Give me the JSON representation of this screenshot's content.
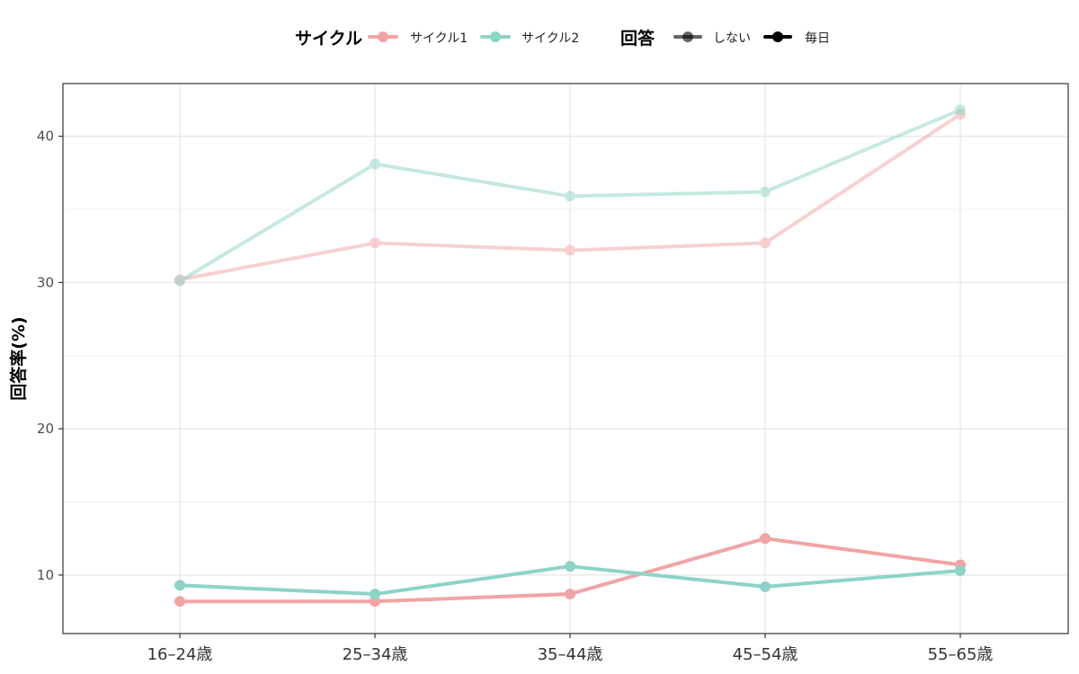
{
  "chart_data": {
    "type": "line",
    "ylabel": "回答率(%)",
    "xlabel": "",
    "categories": [
      "16–24歳",
      "25–34歳",
      "35–44歳",
      "45–54歳",
      "55–65歳"
    ],
    "ylim": [
      6.0,
      43.6
    ],
    "yticks": [
      10,
      20,
      30,
      40
    ],
    "grid": true,
    "legend_position": "top",
    "legend": {
      "color": {
        "title": "サイクル",
        "entries": [
          {
            "label": "サイクル1",
            "color": "#F2A3A3"
          },
          {
            "label": "サイクル2",
            "color": "#8DD3C7"
          }
        ]
      },
      "alpha": {
        "title": "回答",
        "entries": [
          {
            "label": "しない",
            "opacity": 0.5
          },
          {
            "label": "毎日",
            "opacity": 1.0
          }
        ]
      }
    },
    "series": [
      {
        "cycle": "サイクル1",
        "response": "しない",
        "color": "#F2A3A3",
        "opacity": 0.5,
        "values": [
          30.2,
          32.7,
          32.2,
          32.7,
          41.5
        ]
      },
      {
        "cycle": "サイクル2",
        "response": "しない",
        "color": "#8DD3C7",
        "opacity": 0.5,
        "values": [
          30.1,
          38.1,
          35.9,
          36.2,
          41.8
        ]
      },
      {
        "cycle": "サイクル1",
        "response": "毎日",
        "color": "#F2A3A3",
        "opacity": 1.0,
        "values": [
          8.2,
          8.2,
          8.7,
          12.5,
          10.7
        ]
      },
      {
        "cycle": "サイクル2",
        "response": "毎日",
        "color": "#8DD3C7",
        "opacity": 1.0,
        "values": [
          9.3,
          8.7,
          10.6,
          9.2,
          10.3
        ]
      }
    ]
  }
}
